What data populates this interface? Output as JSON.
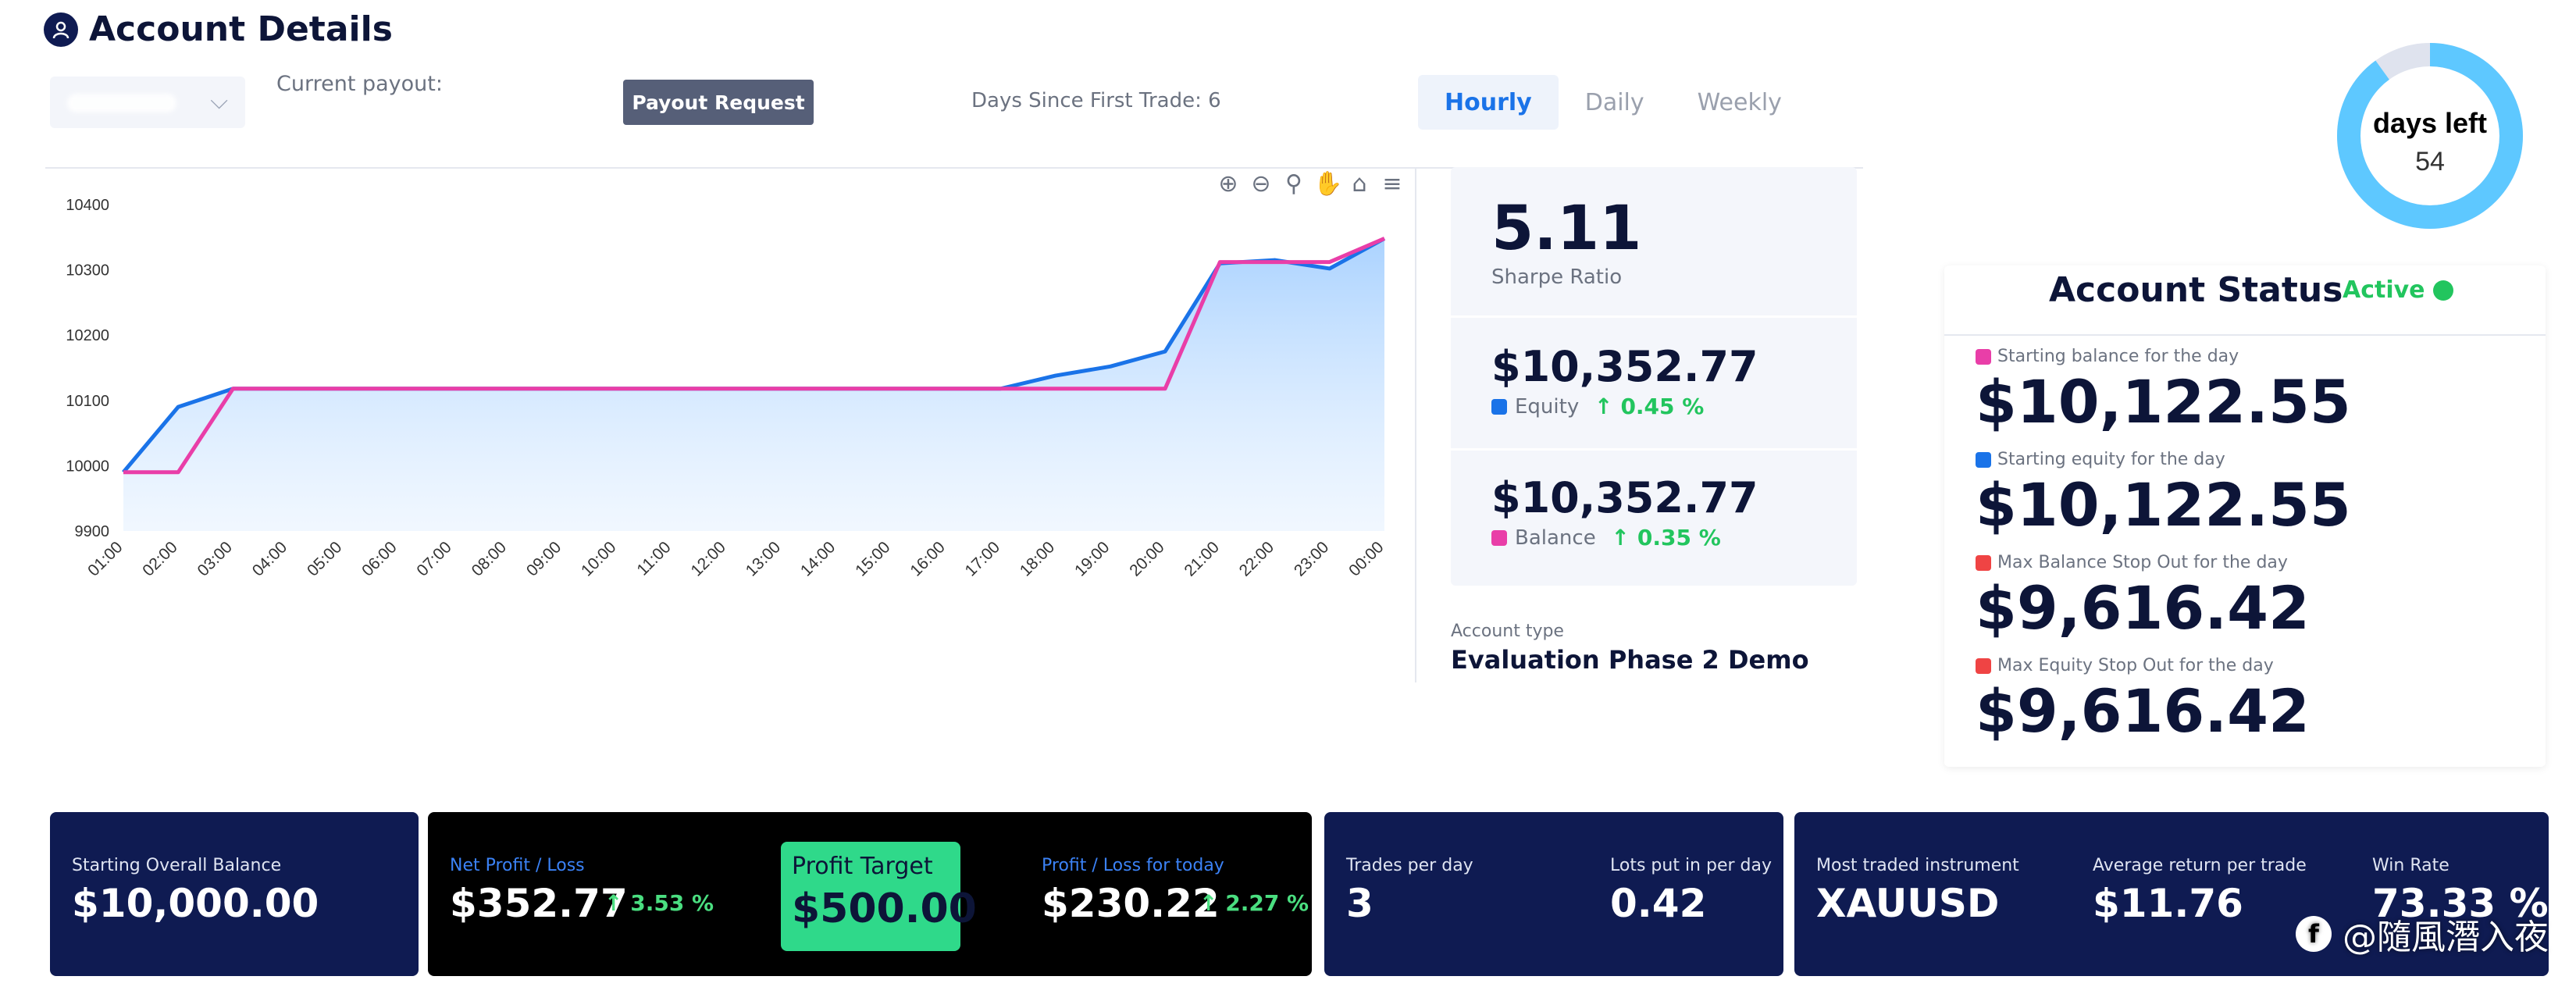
{
  "header": {
    "title": "Account Details"
  },
  "payout": {
    "label": "Current payout:",
    "button": "Payout Request"
  },
  "days_since": "Days Since First Trade: 6",
  "tabs": [
    {
      "label": "Hourly",
      "active": true
    },
    {
      "label": "Daily",
      "active": false
    },
    {
      "label": "Weekly",
      "active": false
    }
  ],
  "stats": {
    "sharpe": {
      "value": "5.11",
      "label": "Sharpe Ratio"
    },
    "equity": {
      "value": "$10,352.77",
      "label": "Equity",
      "change": "0.45 %",
      "color": "#1a73e8"
    },
    "balance": {
      "value": "$10,352.77",
      "label": "Balance",
      "change": "0.35 %",
      "color": "#e93ea8"
    }
  },
  "account_type": {
    "label": "Account type",
    "value": "Evaluation Phase 2 Demo"
  },
  "days_left": {
    "label": "days left",
    "value": "54",
    "fraction_remaining": 0.9
  },
  "status": {
    "title": "Account Status",
    "state": "Active",
    "items": [
      {
        "label": "Starting balance for the day",
        "value": "$10,122.55",
        "color": "#e93ea8"
      },
      {
        "label": "Starting equity for the day",
        "value": "$10,122.55",
        "color": "#1a73e8"
      },
      {
        "label": "Max Balance Stop Out for the day",
        "value": "$9,616.42",
        "color": "#ef4444"
      },
      {
        "label": "Max Equity Stop Out for the day",
        "value": "$9,616.42",
        "color": "#ef4444"
      }
    ]
  },
  "cards": {
    "starting_balance": {
      "label": "Starting Overall Balance",
      "value": "$10,000.00"
    },
    "net_pl": {
      "label": "Net Profit / Loss",
      "value": "$352.77",
      "change": "3.53 %"
    },
    "profit_target": {
      "label": "Profit Target",
      "value": "$500.00"
    },
    "pl_today": {
      "label": "Profit / Loss for today",
      "value": "$230.22",
      "change": "2.27 %"
    },
    "trades": {
      "label": "Trades per day",
      "value": "3"
    },
    "lots": {
      "label": "Lots put in per day",
      "value": "0.42"
    },
    "instrument": {
      "label": "Most traded instrument",
      "value": "XAUUSD"
    },
    "avg_return": {
      "label": "Average return per trade",
      "value": "$11.76"
    },
    "win_rate": {
      "label": "Win Rate",
      "value": "73.33 %"
    }
  },
  "watermark": {
    "text": "@隨風潛入夜"
  },
  "icons": [
    "user-icon",
    "chevron-down-icon",
    "zoom-in-icon",
    "zoom-out-icon",
    "magnify-icon",
    "pan-icon",
    "home-icon",
    "menu-icon",
    "arrow-up-icon"
  ],
  "chart_data": {
    "type": "area",
    "x": [
      "01:00",
      "02:00",
      "03:00",
      "04:00",
      "05:00",
      "06:00",
      "07:00",
      "08:00",
      "09:00",
      "10:00",
      "11:00",
      "12:00",
      "13:00",
      "14:00",
      "15:00",
      "16:00",
      "17:00",
      "18:00",
      "19:00",
      "20:00",
      "21:00",
      "22:00",
      "23:00",
      "00:00"
    ],
    "series": [
      {
        "name": "Equity",
        "color": "#1a73e8",
        "values": [
          9990,
          10090,
          10118,
          10118,
          10118,
          10118,
          10118,
          10118,
          10118,
          10118,
          10118,
          10118,
          10118,
          10118,
          10118,
          10118,
          10118,
          10138,
          10152,
          10175,
          10310,
          10315,
          10302,
          10348
        ]
      },
      {
        "name": "Balance",
        "color": "#e93ea8",
        "values": [
          9990,
          9990,
          10118,
          10118,
          10118,
          10118,
          10118,
          10118,
          10118,
          10118,
          10118,
          10118,
          10118,
          10118,
          10118,
          10118,
          10118,
          10118,
          10118,
          10118,
          10312,
          10312,
          10312,
          10348
        ]
      }
    ],
    "yticks": [
      9900,
      10000,
      10100,
      10200,
      10300,
      10400
    ],
    "ylim": [
      9900,
      10400
    ],
    "grid": false
  }
}
